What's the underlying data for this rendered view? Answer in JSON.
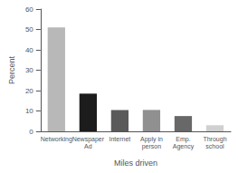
{
  "chart_data": {
    "type": "bar",
    "categories": [
      "Networking",
      "Newspaper\nAd",
      "Internet",
      "Apply in\nperson",
      "Emp.\nAgency",
      "Through\nschool"
    ],
    "values": [
      51,
      18.5,
      10.5,
      10.5,
      7.5,
      3
    ],
    "colors": [
      "#b8b8b8",
      "#1c1c1c",
      "#5a5a5a",
      "#909090",
      "#686868",
      "#d0d0d0"
    ],
    "xlabel": "Miles driven",
    "ylabel": "Percent",
    "ylim": [
      0,
      60
    ],
    "yticks": [
      0,
      10,
      20,
      30,
      40,
      50,
      60
    ],
    "grid": false
  }
}
